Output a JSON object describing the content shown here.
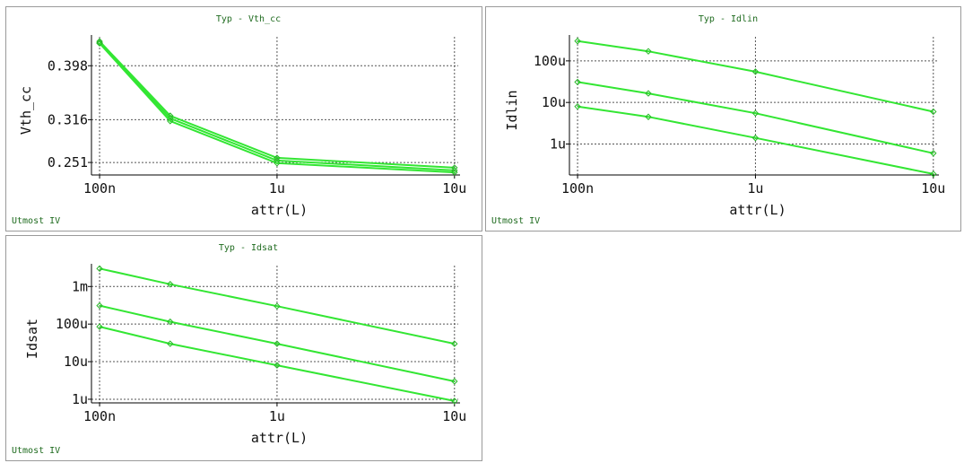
{
  "footer": "Utmost IV",
  "colors": {
    "series": "#33e633",
    "grid": "#555555",
    "frame": "#9a9a9a",
    "title": "#1f6b1f"
  },
  "chart_data": [
    {
      "type": "line",
      "title": "Typ - Vth_cc",
      "xlabel": "attr(L)",
      "ylabel": "Vth_cc",
      "x_scale": "log",
      "y_scale": "linear",
      "grid": true,
      "xlim": [
        9e-08,
        1.05e-05
      ],
      "ylim": [
        0.232,
        0.442
      ],
      "x_ticks": [
        1e-07,
        1e-06,
        1e-05
      ],
      "x_tick_labels": [
        "100n",
        "1u",
        "10u"
      ],
      "y_ticks": [
        0.251,
        0.316,
        0.398
      ],
      "y_tick_labels": [
        "0.251",
        "0.316",
        "0.398"
      ],
      "x": [
        1e-07,
        2.5e-07,
        1e-06,
        1e-05
      ],
      "series": [
        {
          "values": [
            0.435,
            0.322,
            0.258,
            0.243
          ]
        },
        {
          "values": [
            0.433,
            0.318,
            0.254,
            0.239
          ]
        },
        {
          "values": [
            0.432,
            0.314,
            0.25,
            0.236
          ]
        }
      ]
    },
    {
      "type": "line",
      "title": "Typ - Idlin",
      "xlabel": "attr(L)",
      "ylabel": "Idlin",
      "x_scale": "log",
      "y_scale": "log",
      "grid": true,
      "xlim": [
        9e-08,
        1.05e-05
      ],
      "ylim": [
        1.8e-07,
        0.00038
      ],
      "x_ticks": [
        1e-07,
        1e-06,
        1e-05
      ],
      "x_tick_labels": [
        "100n",
        "1u",
        "10u"
      ],
      "y_ticks": [
        1e-06,
        1e-05,
        0.0001
      ],
      "y_tick_labels": [
        "1u",
        "10u",
        "100u"
      ],
      "x": [
        1e-07,
        2.5e-07,
        1e-06,
        1e-05
      ],
      "series": [
        {
          "values": [
            0.0003,
            0.00017,
            5.5e-05,
            6e-06
          ]
        },
        {
          "values": [
            3.1e-05,
            1.65e-05,
            5.5e-06,
            6e-07
          ]
        },
        {
          "values": [
            8e-06,
            4.5e-06,
            1.4e-06,
            1.9e-07
          ]
        }
      ]
    },
    {
      "type": "line",
      "title": "Typ - Idsat",
      "xlabel": "attr(L)",
      "ylabel": "Idsat",
      "x_scale": "log",
      "y_scale": "log",
      "grid": true,
      "xlim": [
        9e-08,
        1.05e-05
      ],
      "ylim": [
        8e-07,
        0.0036
      ],
      "x_ticks": [
        1e-07,
        1e-06,
        1e-05
      ],
      "x_tick_labels": [
        "100n",
        "1u",
        "10u"
      ],
      "y_ticks": [
        1e-06,
        1e-05,
        0.0001,
        0.001
      ],
      "y_tick_labels": [
        "1u",
        "10u",
        "100u",
        "1m"
      ],
      "x": [
        1e-07,
        2.5e-07,
        1e-06,
        1e-05
      ],
      "series": [
        {
          "values": [
            0.003,
            0.00115,
            0.0003,
            3e-05
          ]
        },
        {
          "values": [
            0.00031,
            0.000115,
            3e-05,
            3e-06
          ]
        },
        {
          "values": [
            8.5e-05,
            3e-05,
            8e-06,
            9e-07
          ]
        }
      ]
    }
  ]
}
